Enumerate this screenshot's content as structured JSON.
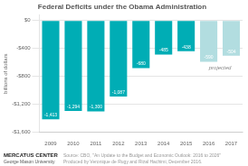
{
  "chart_data": {
    "type": "bar",
    "title": "Federal Deficits under the Obama Administration",
    "ylabel": "billions of dollars",
    "categories": [
      "2009",
      "2010",
      "2011",
      "2012",
      "2013",
      "2014",
      "2015",
      "2016",
      "2017"
    ],
    "values": [
      -1413,
      -1294,
      -1300,
      -1087,
      -680,
      -485,
      -438,
      -590,
      -504
    ],
    "value_labels": [
      "-1,413",
      "-1,294",
      "-1,300",
      "-1,087",
      "-680",
      "-485",
      "-438",
      "-590",
      "-504"
    ],
    "data_labels": true,
    "colors": [
      "#00adb5",
      "#00adb5",
      "#00adb5",
      "#00adb5",
      "#00adb5",
      "#00adb5",
      "#00adb5",
      "#b2dde0",
      "#b2dde0"
    ],
    "ylim": [
      -1600,
      80
    ],
    "yticks": [
      {
        "value": 0,
        "label": "$0"
      },
      {
        "value": -400,
        "label": "-$400"
      },
      {
        "value": -800,
        "label": "-$800"
      },
      {
        "value": -1200,
        "label": "-$1,200"
      },
      {
        "value": -1600,
        "label": "-$1,600"
      }
    ],
    "grid": true,
    "annotations": [
      "projected"
    ],
    "source": "Source: CBO, \"An Update to the Budget and Economic Outlook: 2016 to 2026\"\nProduced by Veronique de Rugy and Rizal Hachimi, December 2016.",
    "credit": [
      "MERCATUS CENTER",
      "George Mason University"
    ]
  }
}
